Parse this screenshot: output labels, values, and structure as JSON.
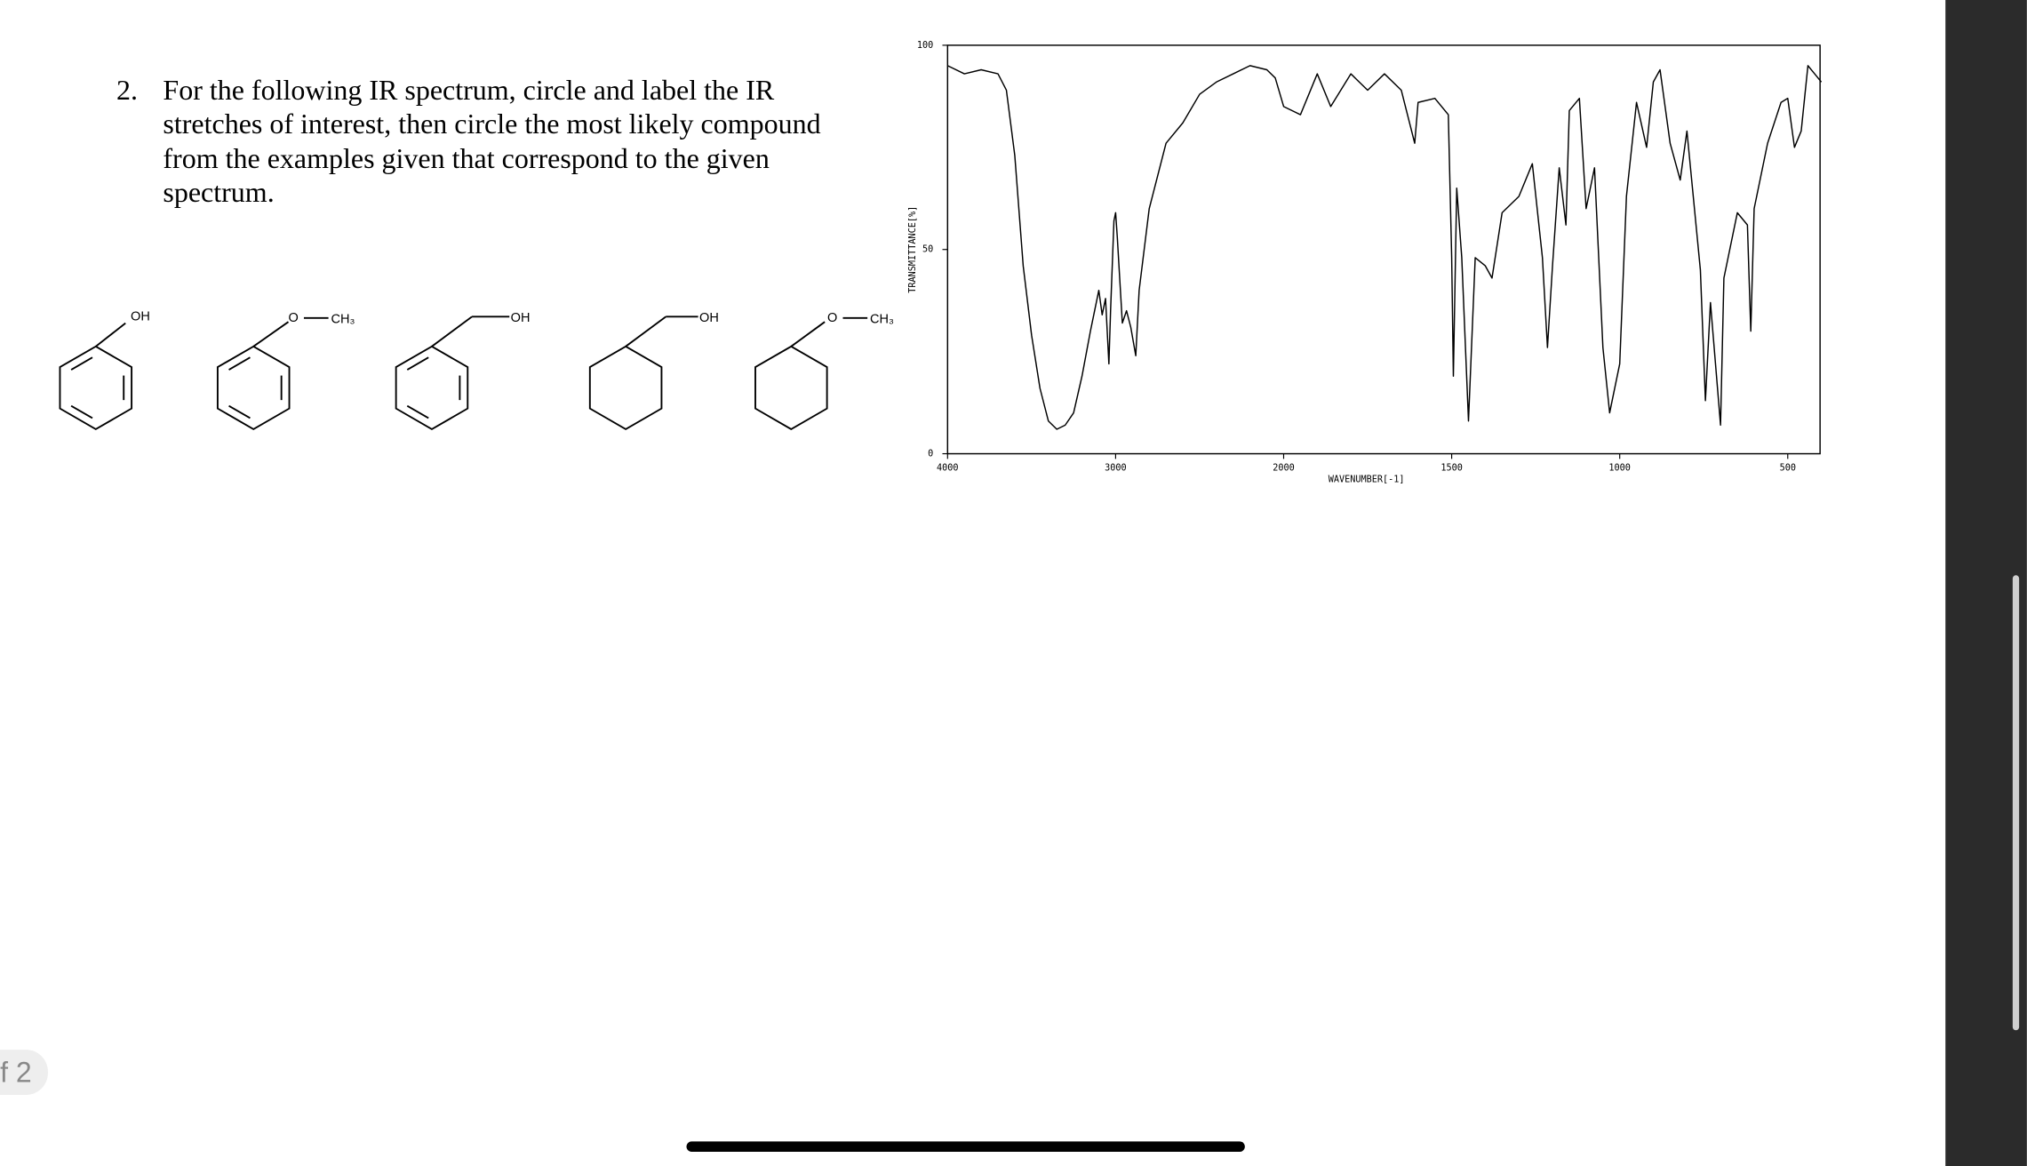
{
  "question": {
    "number": "2.",
    "lines": [
      "For the following IR spectrum, circle and label the IR",
      "stretches of interest, then circle the most likely compound",
      "from the examples given that correspond to the given",
      "spectrum."
    ]
  },
  "molecules": [
    {
      "labels": [
        "OH"
      ]
    },
    {
      "labels": [
        "O",
        "CH₃"
      ]
    },
    {
      "labels": [
        "OH"
      ]
    },
    {
      "labels": [
        "OH"
      ]
    },
    {
      "labels": [
        "O",
        "CH₃"
      ]
    }
  ],
  "page_indicator": "f 2",
  "chart_data": {
    "type": "line",
    "xlabel": "WAVENUMBER[-1]",
    "ylabel": "TRANSMITTANCE[%]",
    "x": [
      4000,
      3900,
      3800,
      3700,
      3650,
      3600,
      3550,
      3500,
      3450,
      3400,
      3350,
      3300,
      3250,
      3200,
      3150,
      3100,
      3080,
      3060,
      3040,
      3030,
      3010,
      3000,
      2990,
      2960,
      2935,
      2910,
      2880,
      2860,
      2800,
      2700,
      2600,
      2500,
      2400,
      2300,
      2200,
      2100,
      2050,
      2000,
      1950,
      1900,
      1860,
      1800,
      1750,
      1700,
      1650,
      1610,
      1600,
      1550,
      1510,
      1500,
      1495,
      1485,
      1470,
      1450,
      1430,
      1400,
      1380,
      1350,
      1300,
      1260,
      1230,
      1215,
      1200,
      1180,
      1160,
      1150,
      1120,
      1100,
      1075,
      1050,
      1030,
      1000,
      980,
      950,
      920,
      900,
      880,
      850,
      820,
      800,
      760,
      745,
      730,
      700,
      690,
      650,
      620,
      610,
      600,
      560,
      520,
      500,
      480,
      460,
      440,
      420,
      400
    ],
    "series": [
      {
        "color": "#000000",
        "values": [
          95,
          93,
          94,
          93,
          89,
          73,
          46,
          29,
          16,
          8,
          6,
          7,
          10,
          19,
          30,
          40,
          34,
          38,
          22,
          35,
          57,
          59,
          53,
          32,
          35,
          31,
          24,
          40,
          60,
          76,
          81,
          88,
          91,
          93,
          95,
          94,
          92,
          85,
          83,
          93,
          85,
          93,
          89,
          93,
          89,
          76,
          86,
          87,
          83,
          48,
          19,
          65,
          48,
          8,
          48,
          46,
          43,
          59,
          63,
          71,
          48,
          26,
          46,
          70,
          56,
          84,
          87,
          60,
          70,
          26,
          10,
          22,
          63,
          86,
          75,
          91,
          94,
          76,
          67,
          79,
          45,
          13,
          37,
          7,
          43,
          59,
          56,
          30,
          60,
          76,
          86,
          87,
          75,
          79,
          95,
          93,
          91
        ]
      }
    ],
    "xlim": [
      4000,
      400
    ],
    "xticks": [
      4000,
      3000,
      2000,
      1500,
      1000,
      500
    ],
    "ylim": [
      0,
      100
    ],
    "yticks": [
      0,
      50,
      100
    ]
  }
}
